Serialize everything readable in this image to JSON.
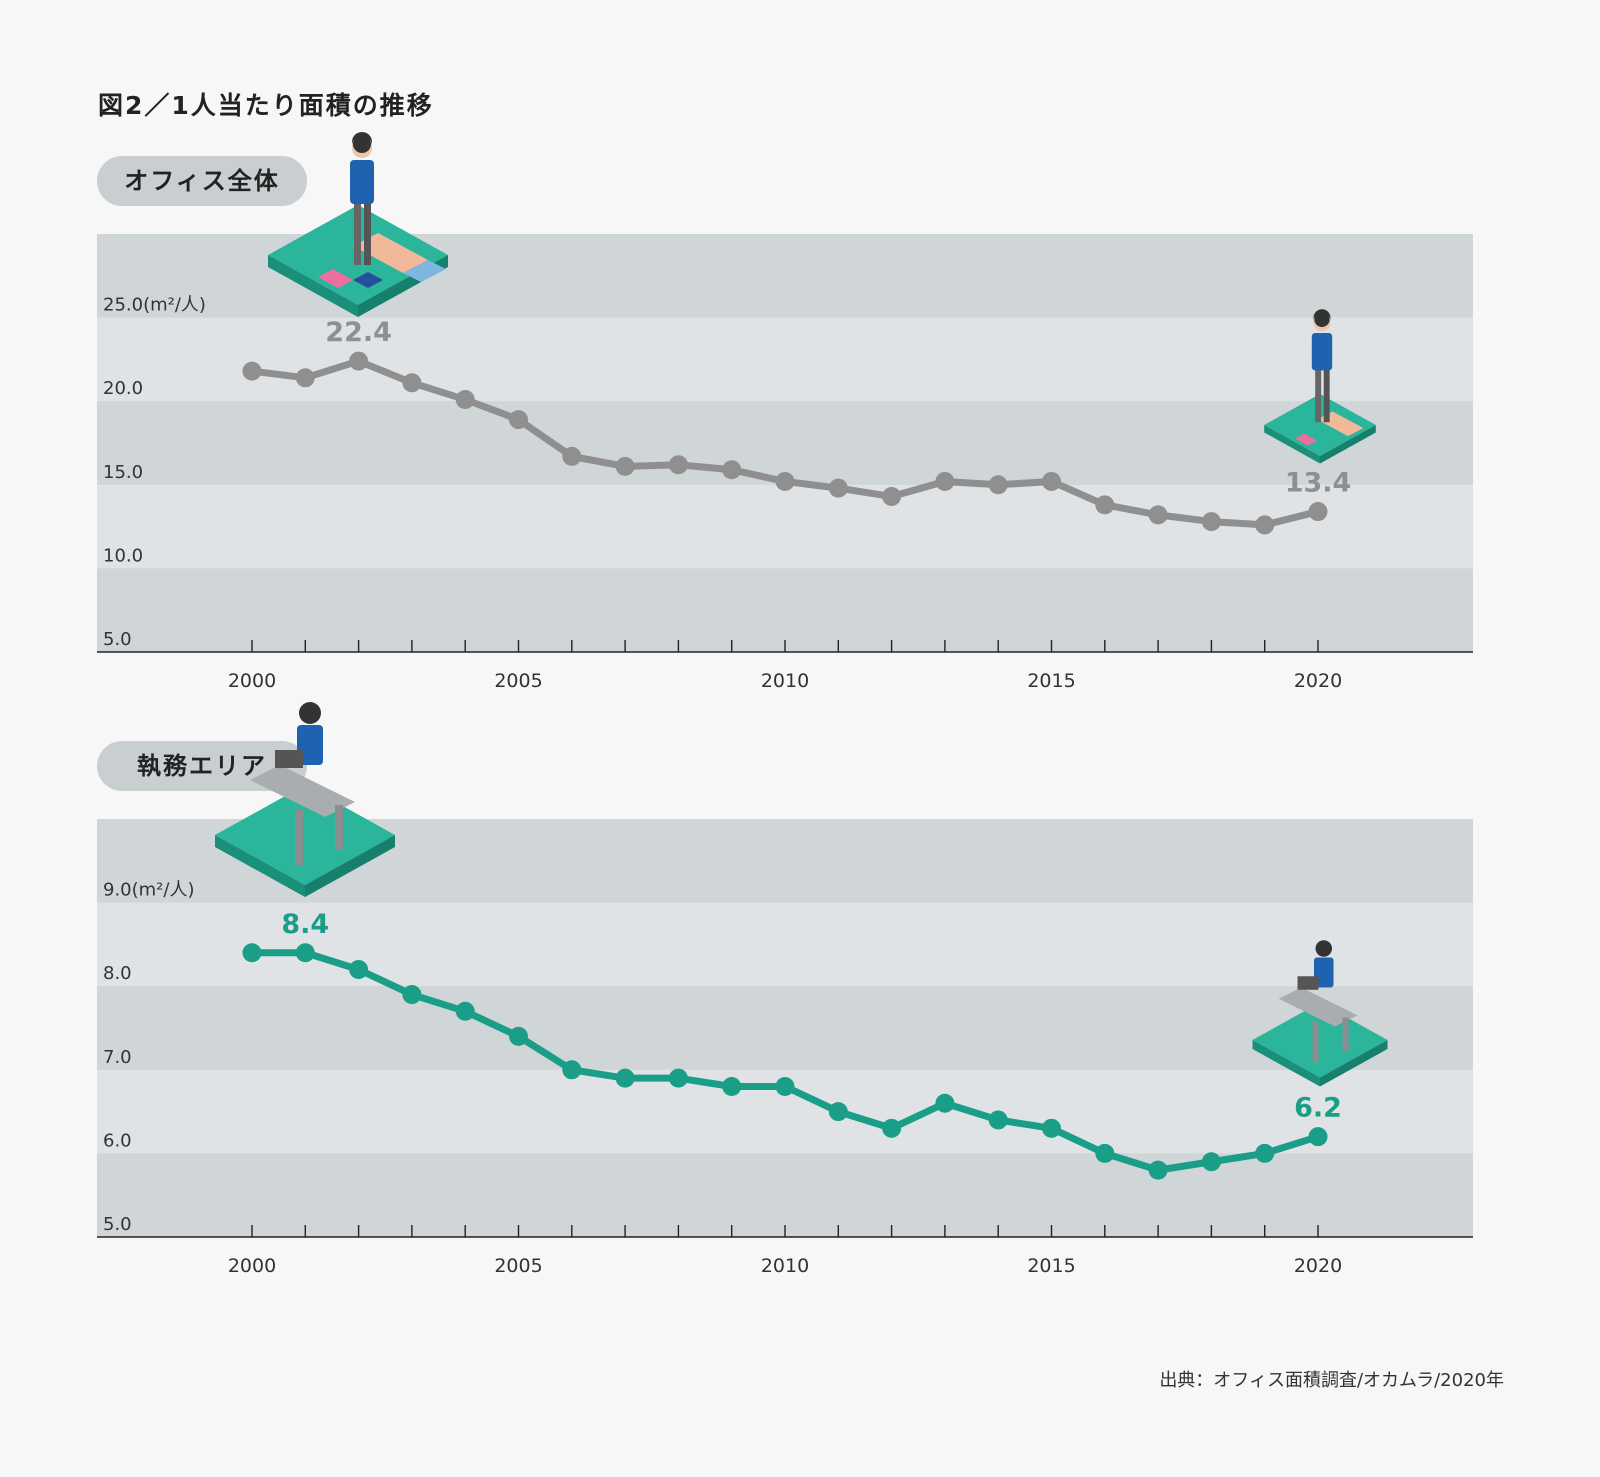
{
  "title": "図2／1人当たり面積の推移",
  "source": "出典：オフィス面積調査/オカムラ/2020年",
  "colors": {
    "background": "#f7f7f7",
    "band_dark": "#d0d5d8",
    "band_light": "#dfe3e5",
    "office_line": "#8f8f8f",
    "work_line": "#1a9e87"
  },
  "chart_data": [
    {
      "type": "line",
      "title": "オフィス全体",
      "unit_label": "25.0(m²/人)",
      "ylim": [
        5,
        30
      ],
      "yticks": [
        "5.0",
        "10.0",
        "15.0",
        "20.0"
      ],
      "xticks": [
        "2000",
        "2005",
        "2010",
        "2015",
        "2020"
      ],
      "x": [
        2000,
        2001,
        2002,
        2003,
        2004,
        2005,
        2006,
        2007,
        2008,
        2009,
        2010,
        2011,
        2012,
        2013,
        2014,
        2015,
        2016,
        2017,
        2018,
        2019,
        2020
      ],
      "values": [
        21.8,
        21.4,
        22.4,
        21.1,
        20.1,
        18.9,
        16.7,
        16.1,
        16.2,
        15.9,
        15.2,
        14.8,
        14.3,
        15.2,
        15.0,
        15.2,
        13.8,
        13.2,
        12.8,
        12.6,
        13.4
      ],
      "annotations": [
        {
          "x": 2002,
          "label": "22.4"
        },
        {
          "x": 2020,
          "label": "13.4"
        }
      ],
      "color": "#8f8f8f",
      "grid": "alternating bands"
    },
    {
      "type": "line",
      "title": "執務エリア",
      "unit_label": "9.0(m²/人)",
      "ylim": [
        5,
        10
      ],
      "yticks": [
        "5.0",
        "6.0",
        "7.0",
        "8.0"
      ],
      "xticks": [
        "2000",
        "2005",
        "2010",
        "2015",
        "2020"
      ],
      "x": [
        2000,
        2001,
        2002,
        2003,
        2004,
        2005,
        2006,
        2007,
        2008,
        2009,
        2010,
        2011,
        2012,
        2013,
        2014,
        2015,
        2016,
        2017,
        2018,
        2019,
        2020
      ],
      "values": [
        8.4,
        8.4,
        8.2,
        7.9,
        7.7,
        7.4,
        7.0,
        6.9,
        6.9,
        6.8,
        6.8,
        6.5,
        6.3,
        6.6,
        6.4,
        6.3,
        6.0,
        5.8,
        5.9,
        6.0,
        6.2
      ],
      "annotations": [
        {
          "x": 2001,
          "label": "8.4"
        },
        {
          "x": 2020,
          "label": "6.2"
        }
      ],
      "color": "#1a9e87",
      "grid": "alternating bands"
    }
  ]
}
